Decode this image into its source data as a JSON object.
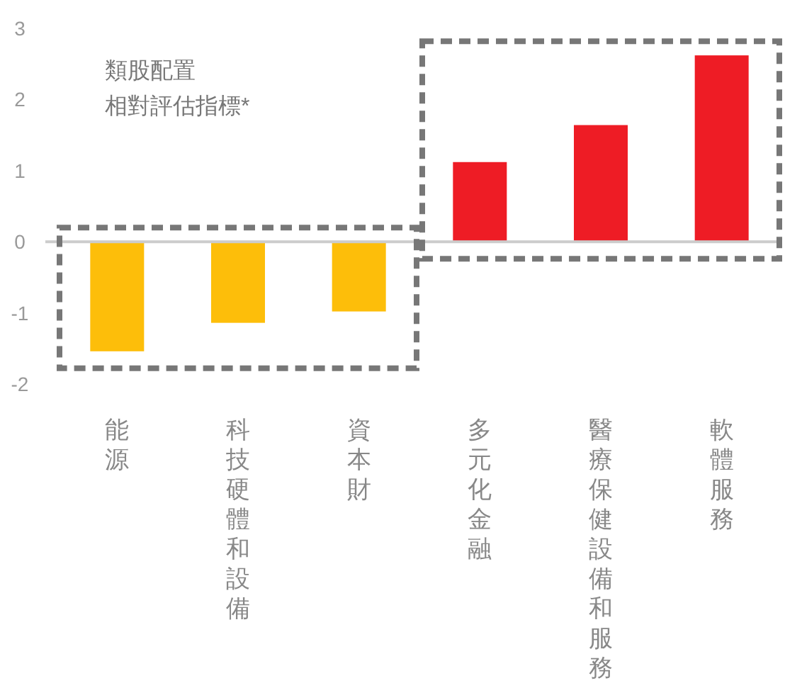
{
  "chart_data": {
    "type": "bar",
    "title": "類股配置",
    "subtitle": "相對評估指標*",
    "categories": [
      "能源",
      "科技硬體和設備",
      "資本財",
      "多元化金融",
      "醫療保健設備和服務",
      "軟體服務"
    ],
    "values": [
      -1.54,
      -1.14,
      -0.98,
      1.12,
      1.64,
      2.62
    ],
    "colors": [
      "#fdbe0a",
      "#fdbe0a",
      "#fdbe0a",
      "#ee1c25",
      "#ee1c25",
      "#ee1c25"
    ],
    "ylim": [
      -2,
      3
    ],
    "yticks": [
      -2,
      -1,
      0,
      1,
      2,
      3
    ]
  }
}
